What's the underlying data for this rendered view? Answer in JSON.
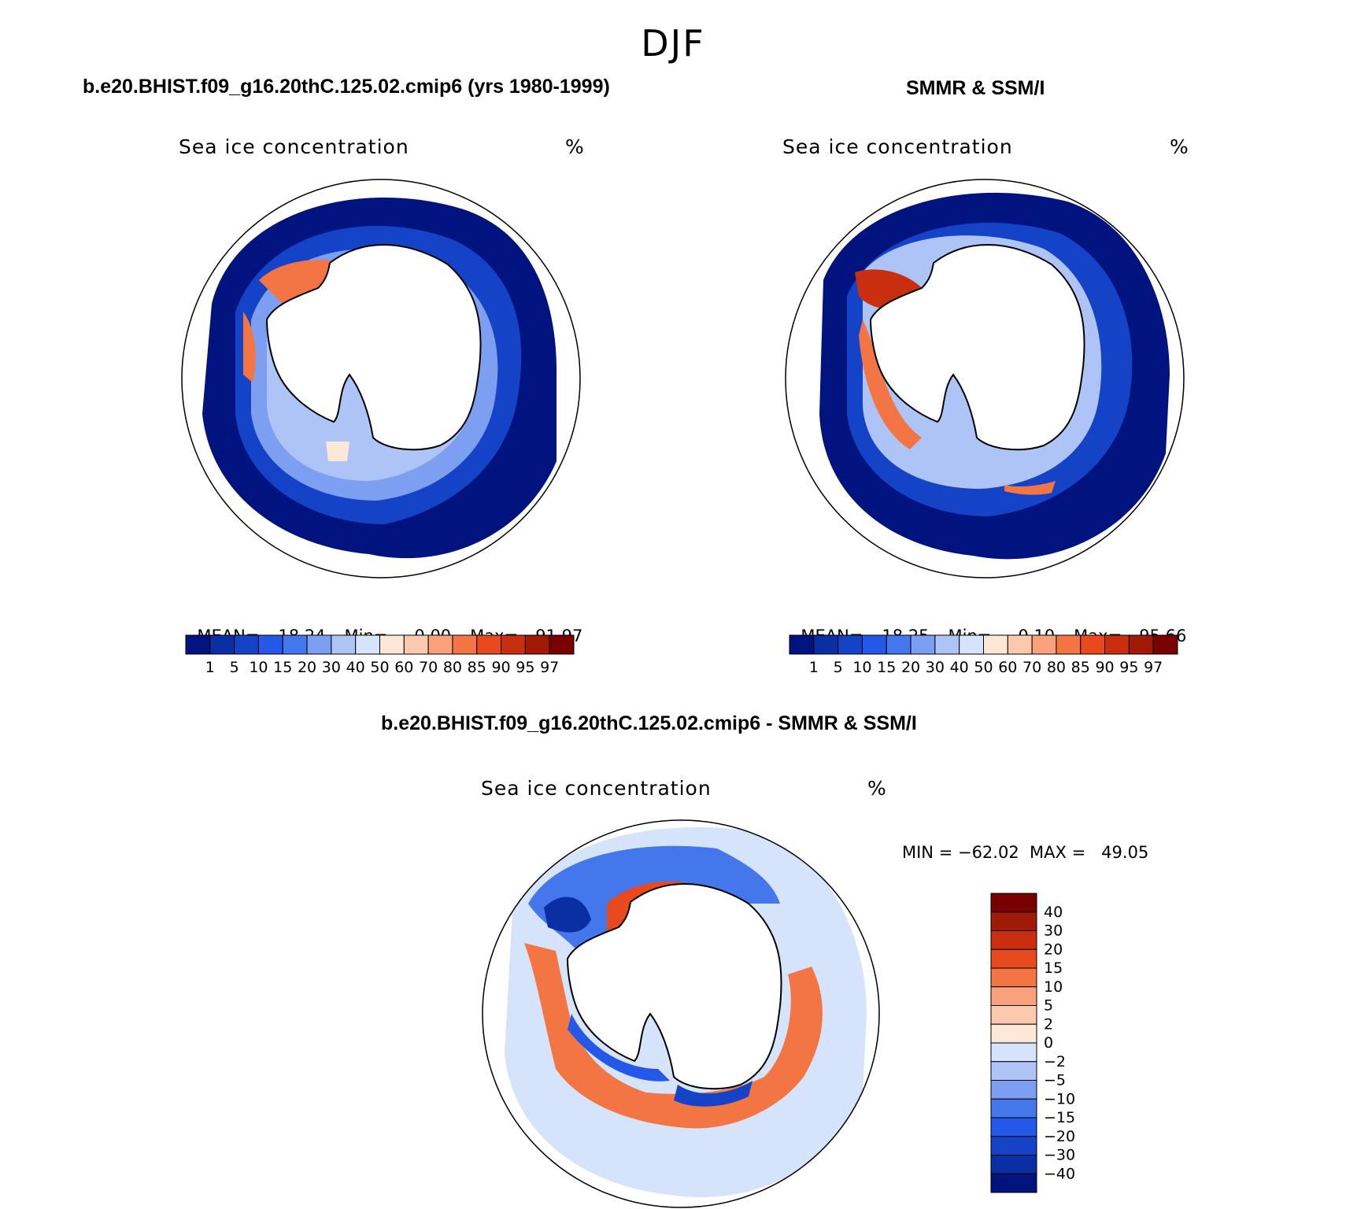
{
  "page": {
    "title": "DJF",
    "left_panel_title": "b.e20.BHIST.f09_g16.20thC.125.02.cmip6 (yrs 1980-1999)",
    "right_panel_title": "SMMR & SSM/I",
    "diff_panel_title": "b.e20.BHIST.f09_g16.20thC.125.02.cmip6 - SMMR & SSM/I"
  },
  "panels": {
    "left": {
      "variable": "Sea ice concentration",
      "units": "%",
      "mean_label": "MEAN=",
      "mean": "18.24",
      "min_label": "Min=",
      "min": "0.00",
      "max_label": "Max=",
      "max": "91.97"
    },
    "right": {
      "variable": "Sea ice concentration",
      "units": "%",
      "mean_label": "MEAN=",
      "mean": "18.25",
      "min_label": "Min=",
      "min": "0.10",
      "max_label": "Max=",
      "max": "95.66"
    },
    "diff": {
      "variable": "Sea ice concentration",
      "units": "%",
      "minmax_text": "MIN = −62.02  MAX =   49.05"
    }
  },
  "colorbars": {
    "concentration": {
      "levels": [
        "1",
        "5",
        "10",
        "15",
        "20",
        "30",
        "40",
        "50",
        "60",
        "70",
        "80",
        "85",
        "90",
        "95",
        "97"
      ],
      "colors": [
        "#00137f",
        "#0a2ea3",
        "#1443c7",
        "#2358e8",
        "#4577ec",
        "#7d9ff2",
        "#aec4f7",
        "#d6e4fb",
        "#fde7d6",
        "#fcc9ae",
        "#f9a07c",
        "#f47544",
        "#e9491e",
        "#c92f0e",
        "#a01a07",
        "#7a0000"
      ]
    },
    "difference": {
      "levels": [
        "40",
        "30",
        "20",
        "15",
        "10",
        "5",
        "2",
        "0",
        "−2",
        "−5",
        "−10",
        "−15",
        "−20",
        "−30",
        "−40"
      ],
      "colors": [
        "#7a0000",
        "#a01a07",
        "#c92f0e",
        "#e9491e",
        "#f47544",
        "#f9a07c",
        "#fcc9ae",
        "#fde7d6",
        "#d6e4fb",
        "#aec4f7",
        "#7d9ff2",
        "#4577ec",
        "#2358e8",
        "#1443c7",
        "#0a2ea3",
        "#00137f"
      ]
    }
  },
  "map_colors": {
    "deep_blue": "#00137f",
    "mid_blue": "#1443c7",
    "light_blue": "#7d9ff2",
    "pale_blue": "#d6e4fb",
    "pale_red": "#fde7d6",
    "mid_red": "#f47544",
    "dark_red": "#c92f0e",
    "land": "#ffffff",
    "coast": "#000000"
  }
}
